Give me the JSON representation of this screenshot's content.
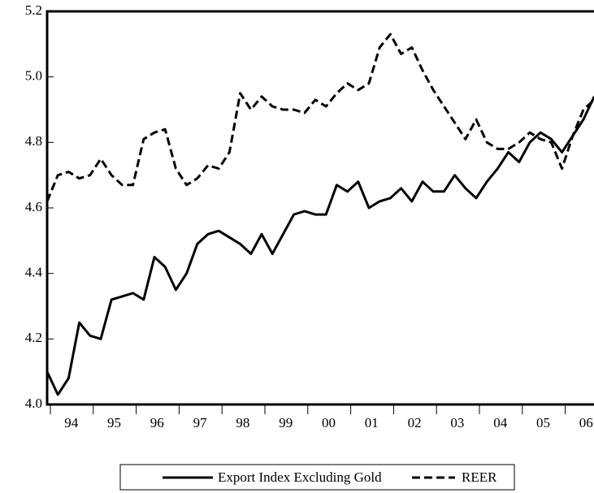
{
  "chart_data": {
    "type": "line",
    "x_labels": [
      "94",
      "95",
      "96",
      "97",
      "98",
      "99",
      "00",
      "01",
      "02",
      "03",
      "04",
      "05",
      "06"
    ],
    "ylim": [
      4.0,
      5.2
    ],
    "yticks": [
      {
        "value": 4.0,
        "label": "4.0"
      },
      {
        "value": 4.2,
        "label": "4.2"
      },
      {
        "value": 4.4,
        "label": "4.4"
      },
      {
        "value": 4.6,
        "label": "4.6"
      },
      {
        "value": 4.8,
        "label": "4.8"
      },
      {
        "value": 5.0,
        "label": "5.0"
      },
      {
        "value": 5.2,
        "label": "5.2"
      }
    ],
    "grid": false,
    "legend": "bottom",
    "series": [
      {
        "name": "Export Index Excluding Gold",
        "color": "#000000",
        "dash": "solid",
        "values": [
          4.1,
          4.03,
          4.08,
          4.25,
          4.21,
          4.2,
          4.32,
          4.33,
          4.34,
          4.32,
          4.45,
          4.42,
          4.35,
          4.4,
          4.49,
          4.52,
          4.53,
          4.51,
          4.49,
          4.46,
          4.52,
          4.46,
          4.52,
          4.58,
          4.59,
          4.58,
          4.58,
          4.67,
          4.65,
          4.68,
          4.6,
          4.62,
          4.63,
          4.66,
          4.62,
          4.68,
          4.65,
          4.65,
          4.7,
          4.66,
          4.63,
          4.68,
          4.72,
          4.77,
          4.74,
          4.8,
          4.83,
          4.81,
          4.77,
          4.82,
          4.87,
          4.94
        ]
      },
      {
        "name": "REER",
        "color": "#000000",
        "dash": "dashed",
        "values": [
          4.62,
          4.7,
          4.71,
          4.69,
          4.7,
          4.75,
          4.7,
          4.67,
          4.67,
          4.81,
          4.83,
          4.84,
          4.72,
          4.67,
          4.69,
          4.73,
          4.72,
          4.77,
          4.95,
          4.9,
          4.94,
          4.91,
          4.9,
          4.9,
          4.89,
          4.93,
          4.91,
          4.95,
          4.98,
          4.96,
          4.98,
          5.09,
          5.13,
          5.07,
          5.09,
          5.02,
          4.96,
          4.91,
          4.86,
          4.81,
          4.87,
          4.8,
          4.78,
          4.78,
          4.8,
          4.83,
          4.81,
          4.8,
          4.72,
          4.82,
          4.9,
          4.93
        ]
      }
    ]
  }
}
